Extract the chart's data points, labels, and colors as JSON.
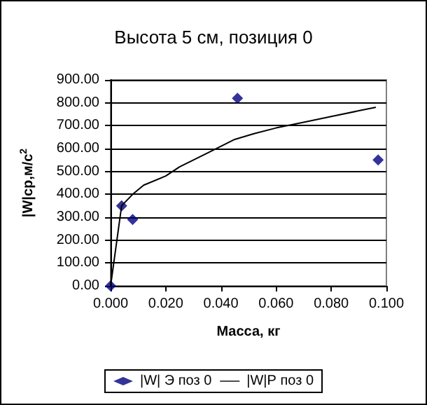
{
  "chart_data": {
    "type": "scatter",
    "title": "Высота 5 см, позиция 0",
    "xlabel": "Масса, кг",
    "ylabel": "|W|ср,м/с$^{2}$",
    "xlim": [
      0,
      0.1
    ],
    "xticks": [
      {
        "value": 0,
        "label": "0.000"
      },
      {
        "value": 0.02,
        "label": "0.020"
      },
      {
        "value": 0.04,
        "label": "0.040"
      },
      {
        "value": 0.06,
        "label": "0.060"
      },
      {
        "value": 0.08,
        "label": "0.080"
      },
      {
        "value": 0.1,
        "label": "0.100"
      }
    ],
    "ylim": [
      0,
      900
    ],
    "yticks": [
      {
        "value": 0,
        "label": "0.00"
      },
      {
        "value": 100,
        "label": "100.00"
      },
      {
        "value": 200,
        "label": "200.00"
      },
      {
        "value": 300,
        "label": "300.00"
      },
      {
        "value": 400,
        "label": "400.00"
      },
      {
        "value": 500,
        "label": "500.00"
      },
      {
        "value": 600,
        "label": "600.00"
      },
      {
        "value": 700,
        "label": "700.00"
      },
      {
        "value": 800,
        "label": "800.00"
      },
      {
        "value": 900,
        "label": "900.00"
      }
    ],
    "grid": "y",
    "legend": "bottom",
    "series": [
      {
        "name": "|W| Э поз 0",
        "marker": "diamond",
        "color": "#000080",
        "x": [
          0,
          0.004,
          0.008,
          0.046,
          0.097
        ],
        "values": [
          0,
          350,
          290,
          820,
          550
        ]
      },
      {
        "name": "|W|Р поз 0",
        "type": "line",
        "marker": "none",
        "line_style": "solid",
        "color": "#000000",
        "x": [
          0,
          0.004,
          0.008,
          0.012,
          0.02,
          0.025,
          0.035,
          0.045,
          0.052,
          0.06,
          0.07,
          0.08,
          0.09,
          0.096
        ],
        "values": [
          0,
          350,
          400,
          440,
          480,
          520,
          580,
          640,
          665,
          690,
          715,
          740,
          765,
          780
        ]
      }
    ]
  }
}
